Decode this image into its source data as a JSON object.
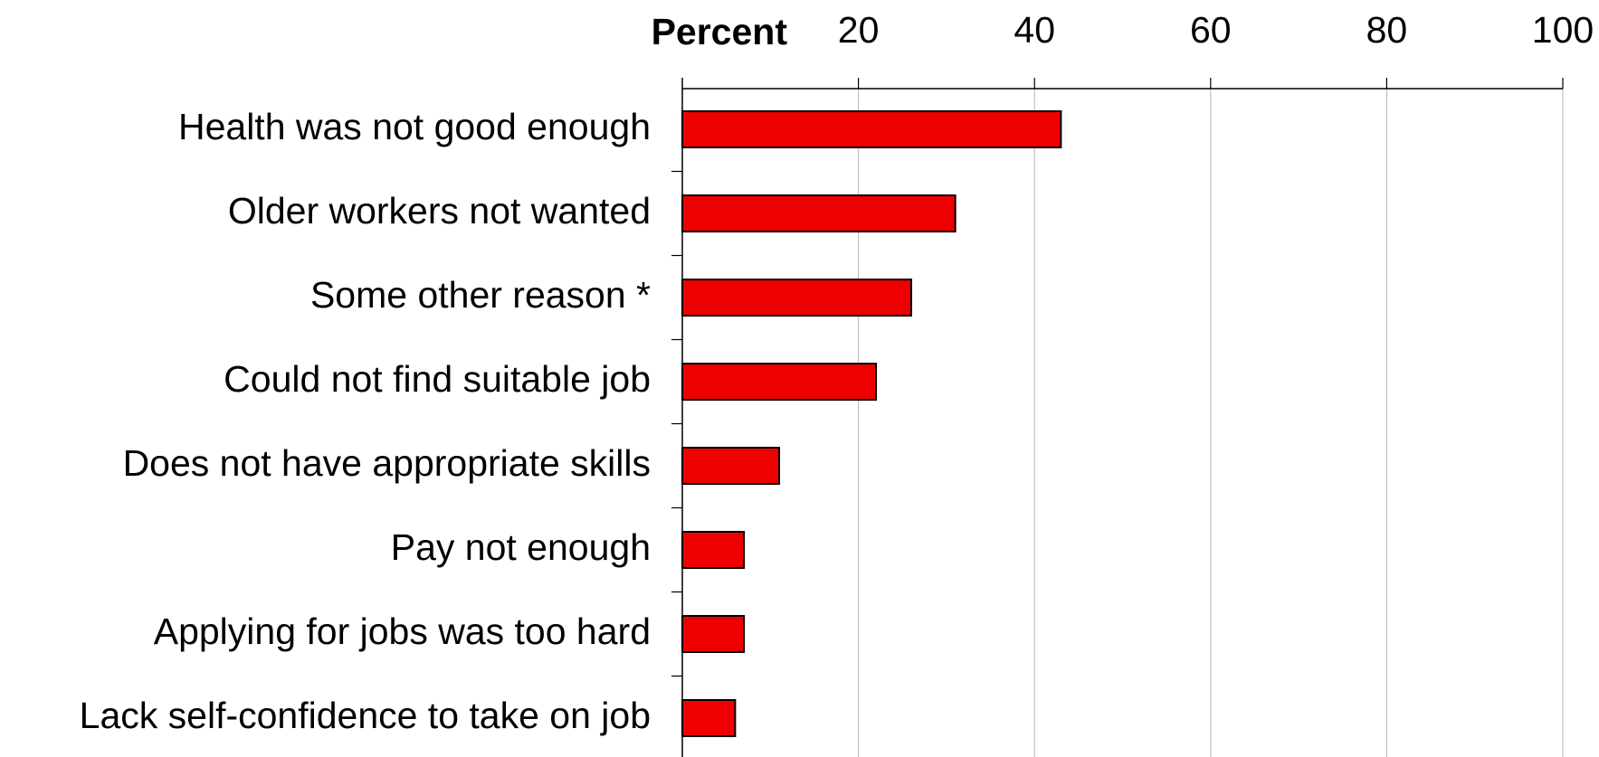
{
  "chart_data": {
    "type": "bar",
    "orientation": "horizontal",
    "x_label": "Percent",
    "categories": [
      "Health was not good enough",
      "Older workers not wanted",
      "Some other reason *",
      "Could not find suitable job",
      "Does not have appropriate skills",
      "Pay not enough",
      "Applying for jobs was too hard",
      "Lack self-confidence to take on job"
    ],
    "values": [
      43,
      31,
      26,
      22,
      11,
      7,
      7,
      6
    ],
    "color": "#ee0000",
    "xlim": [
      0,
      100
    ],
    "xticks": [
      20,
      40,
      60,
      80,
      100
    ],
    "grid": true
  }
}
